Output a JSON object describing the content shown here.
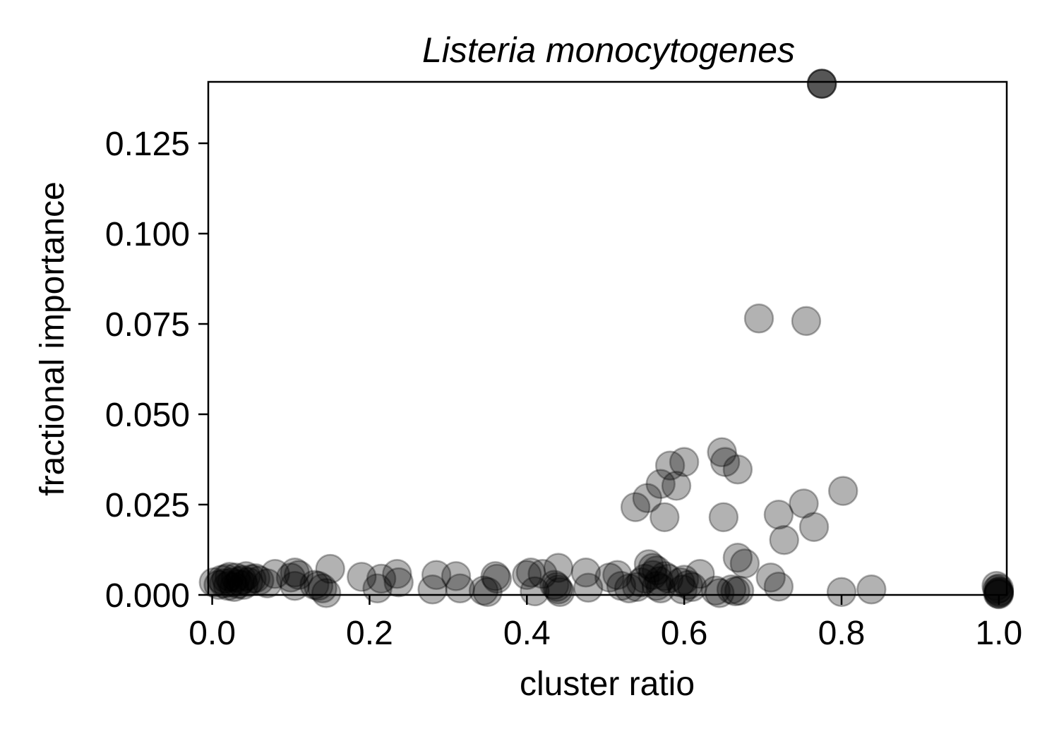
{
  "chart_data": {
    "type": "scatter",
    "title": "Listeria monocytogenes",
    "xlabel": "cluster ratio",
    "ylabel": "fractional importance",
    "xlim": [
      -0.005,
      1.01
    ],
    "ylim": [
      0.0,
      0.142
    ],
    "grid": false,
    "xticks": [
      {
        "value": 0.0,
        "label": "0.0"
      },
      {
        "value": 0.2,
        "label": "0.2"
      },
      {
        "value": 0.4,
        "label": "0.4"
      },
      {
        "value": 0.6,
        "label": "0.6"
      },
      {
        "value": 0.8,
        "label": "0.8"
      },
      {
        "value": 1.0,
        "label": "1.0"
      }
    ],
    "yticks": [
      {
        "value": 0.0,
        "label": "0.000"
      },
      {
        "value": 0.025,
        "label": "0.025"
      },
      {
        "value": 0.05,
        "label": "0.050"
      },
      {
        "value": 0.075,
        "label": "0.075"
      },
      {
        "value": 0.1,
        "label": "0.100"
      },
      {
        "value": 0.125,
        "label": "0.125"
      }
    ],
    "marker_color": "#000000",
    "marker_alpha": 0.3,
    "points": [
      {
        "x": 0.775,
        "y": 0.1415
      },
      {
        "x": 0.775,
        "y": 0.1415
      },
      {
        "x": 0.775,
        "y": 0.1415
      },
      {
        "x": 0.695,
        "y": 0.0765
      },
      {
        "x": 0.755,
        "y": 0.0758
      },
      {
        "x": 0.648,
        "y": 0.0395
      },
      {
        "x": 0.652,
        "y": 0.0368
      },
      {
        "x": 0.668,
        "y": 0.0347
      },
      {
        "x": 0.6,
        "y": 0.0368
      },
      {
        "x": 0.582,
        "y": 0.0358
      },
      {
        "x": 0.59,
        "y": 0.0302
      },
      {
        "x": 0.57,
        "y": 0.0307
      },
      {
        "x": 0.553,
        "y": 0.0268
      },
      {
        "x": 0.538,
        "y": 0.0243
      },
      {
        "x": 0.575,
        "y": 0.0215
      },
      {
        "x": 0.65,
        "y": 0.0215
      },
      {
        "x": 0.802,
        "y": 0.0288
      },
      {
        "x": 0.752,
        "y": 0.0253
      },
      {
        "x": 0.72,
        "y": 0.0222
      },
      {
        "x": 0.765,
        "y": 0.0188
      },
      {
        "x": 0.727,
        "y": 0.0152
      },
      {
        "x": 0.668,
        "y": 0.0103
      },
      {
        "x": 0.677,
        "y": 0.0087
      },
      {
        "x": 0.71,
        "y": 0.0048
      },
      {
        "x": 0.72,
        "y": 0.0023
      },
      {
        "x": 0.8,
        "y": 0.0008
      },
      {
        "x": 0.838,
        "y": 0.0015
      },
      {
        "x": 0.66,
        "y": 0.0015
      },
      {
        "x": 0.665,
        "y": 0.001
      },
      {
        "x": 0.67,
        "y": 0.0012
      },
      {
        "x": 0.64,
        "y": 0.0012
      },
      {
        "x": 0.645,
        "y": 0.0005
      },
      {
        "x": 0.997,
        "y": 0.0025
      },
      {
        "x": 1.0,
        "y": 0.0018
      },
      {
        "x": 1.0,
        "y": 0.001
      },
      {
        "x": 1.0,
        "y": 0.0005
      },
      {
        "x": 1.0,
        "y": 0.0002
      },
      {
        "x": 0.998,
        "y": 0.0015
      },
      {
        "x": 1.0,
        "y": 0.0008
      },
      {
        "x": 0.999,
        "y": 0.0003
      },
      {
        "x": 0.002,
        "y": 0.0035
      },
      {
        "x": 0.008,
        "y": 0.0028
      },
      {
        "x": 0.012,
        "y": 0.0042
      },
      {
        "x": 0.015,
        "y": 0.0032
      },
      {
        "x": 0.018,
        "y": 0.0045
      },
      {
        "x": 0.02,
        "y": 0.0025
      },
      {
        "x": 0.022,
        "y": 0.005
      },
      {
        "x": 0.025,
        "y": 0.0035
      },
      {
        "x": 0.028,
        "y": 0.0022
      },
      {
        "x": 0.03,
        "y": 0.0048
      },
      {
        "x": 0.033,
        "y": 0.003
      },
      {
        "x": 0.035,
        "y": 0.0038
      },
      {
        "x": 0.038,
        "y": 0.0042
      },
      {
        "x": 0.04,
        "y": 0.0028
      },
      {
        "x": 0.043,
        "y": 0.0052
      },
      {
        "x": 0.046,
        "y": 0.0036
      },
      {
        "x": 0.05,
        "y": 0.0044
      },
      {
        "x": 0.055,
        "y": 0.0046
      },
      {
        "x": 0.06,
        "y": 0.004
      },
      {
        "x": 0.07,
        "y": 0.0032
      },
      {
        "x": 0.08,
        "y": 0.0058
      },
      {
        "x": 0.1,
        "y": 0.0048
      },
      {
        "x": 0.105,
        "y": 0.0062
      },
      {
        "x": 0.11,
        "y": 0.0055
      },
      {
        "x": 0.105,
        "y": 0.0025
      },
      {
        "x": 0.13,
        "y": 0.0028
      },
      {
        "x": 0.135,
        "y": 0.0025
      },
      {
        "x": 0.14,
        "y": 0.0018
      },
      {
        "x": 0.145,
        "y": 0.0005
      },
      {
        "x": 0.15,
        "y": 0.0072
      },
      {
        "x": 0.19,
        "y": 0.005
      },
      {
        "x": 0.215,
        "y": 0.0045
      },
      {
        "x": 0.21,
        "y": 0.0018
      },
      {
        "x": 0.235,
        "y": 0.0058
      },
      {
        "x": 0.237,
        "y": 0.0035
      },
      {
        "x": 0.285,
        "y": 0.0055
      },
      {
        "x": 0.28,
        "y": 0.0015
      },
      {
        "x": 0.31,
        "y": 0.0052
      },
      {
        "x": 0.315,
        "y": 0.0018
      },
      {
        "x": 0.345,
        "y": 0.0012
      },
      {
        "x": 0.35,
        "y": 0.0008
      },
      {
        "x": 0.36,
        "y": 0.0052
      },
      {
        "x": 0.362,
        "y": 0.0045
      },
      {
        "x": 0.4,
        "y": 0.0055
      },
      {
        "x": 0.405,
        "y": 0.0062
      },
      {
        "x": 0.42,
        "y": 0.0058
      },
      {
        "x": 0.44,
        "y": 0.0075
      },
      {
        "x": 0.435,
        "y": 0.0028
      },
      {
        "x": 0.438,
        "y": 0.0022
      },
      {
        "x": 0.44,
        "y": 0.0015
      },
      {
        "x": 0.442,
        "y": 0.0008
      },
      {
        "x": 0.41,
        "y": 0.001
      },
      {
        "x": 0.475,
        "y": 0.0062
      },
      {
        "x": 0.478,
        "y": 0.002
      },
      {
        "x": 0.505,
        "y": 0.0048
      },
      {
        "x": 0.515,
        "y": 0.0055
      },
      {
        "x": 0.52,
        "y": 0.0025
      },
      {
        "x": 0.53,
        "y": 0.0018
      },
      {
        "x": 0.54,
        "y": 0.0022
      },
      {
        "x": 0.545,
        "y": 0.0035
      },
      {
        "x": 0.55,
        "y": 0.0045
      },
      {
        "x": 0.555,
        "y": 0.0085
      },
      {
        "x": 0.56,
        "y": 0.0075
      },
      {
        "x": 0.565,
        "y": 0.0068
      },
      {
        "x": 0.56,
        "y": 0.0055
      },
      {
        "x": 0.568,
        "y": 0.0038
      },
      {
        "x": 0.565,
        "y": 0.0025
      },
      {
        "x": 0.57,
        "y": 0.0018
      },
      {
        "x": 0.575,
        "y": 0.0052
      },
      {
        "x": 0.58,
        "y": 0.0045
      },
      {
        "x": 0.595,
        "y": 0.0035
      },
      {
        "x": 0.6,
        "y": 0.0042
      },
      {
        "x": 0.605,
        "y": 0.0028
      },
      {
        "x": 0.598,
        "y": 0.0015
      },
      {
        "x": 0.61,
        "y": 0.0022
      },
      {
        "x": 0.62,
        "y": 0.0058
      }
    ]
  }
}
